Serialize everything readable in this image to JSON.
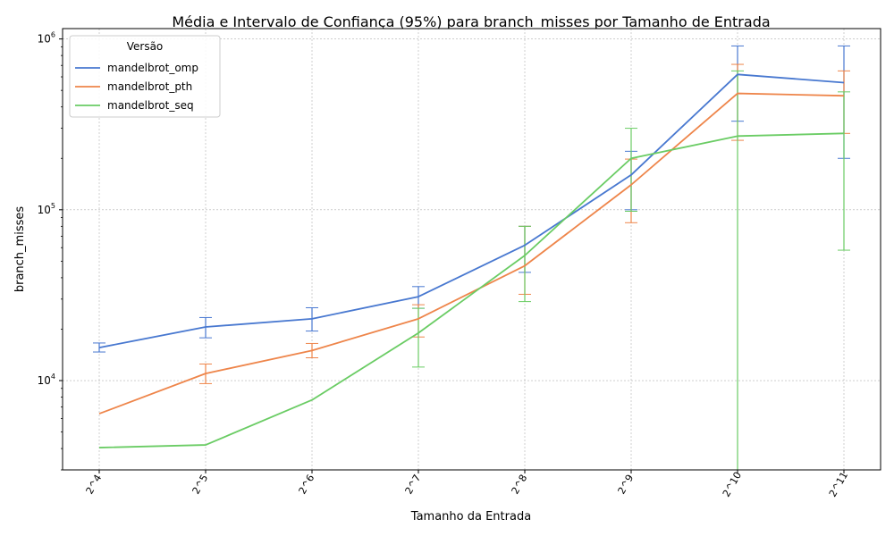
{
  "chart_data": {
    "type": "line",
    "title": "Média e Intervalo de Confiança (95%) para branch_misses por Tamanho de Entrada",
    "xlabel": "Tamanho da Entrada",
    "ylabel": "branch_misses",
    "x_ticks": [
      "2^4",
      "2^5",
      "2^6",
      "2^7",
      "2^8",
      "2^9",
      "2^10",
      "2^11"
    ],
    "y_scale": "log",
    "ylim": [
      3000,
      1150000
    ],
    "y_ticks": [
      {
        "value": 10000,
        "base": "10",
        "exp": "4"
      },
      {
        "value": 100000,
        "base": "10",
        "exp": "5"
      },
      {
        "value": 1000000,
        "base": "10",
        "exp": "6"
      }
    ],
    "grid": true,
    "legend": {
      "title": "Versão",
      "placement": "top-left"
    },
    "series": [
      {
        "name": "mandelbrot_omp",
        "color": "#4878d0",
        "values": [
          15600,
          20600,
          23000,
          31000,
          62000,
          160000,
          620000,
          555000
        ],
        "ci_low": [
          14700,
          17800,
          19500,
          26500,
          43000,
          100000,
          330000,
          200000
        ],
        "ci_high": [
          16600,
          23400,
          26700,
          35500,
          80000,
          220000,
          910000,
          910000
        ]
      },
      {
        "name": "mandelbrot_pth",
        "color": "#ee854a",
        "values": [
          6400,
          11000,
          15000,
          23000,
          47000,
          140000,
          480000,
          465000
        ],
        "ci_low": [
          6400,
          9600,
          13600,
          18000,
          32000,
          84000,
          255000,
          280000
        ],
        "ci_high": [
          6400,
          12500,
          16500,
          27800,
          80000,
          198000,
          710000,
          650000
        ]
      },
      {
        "name": "mandelbrot_seq",
        "color": "#6acc64",
        "values": [
          4050,
          4200,
          7700,
          19000,
          54000,
          200000,
          270000,
          280000
        ],
        "ci_low": [
          4050,
          4200,
          7700,
          12000,
          29000,
          98000,
          1000,
          58000
        ],
        "ci_high": [
          4050,
          4200,
          7700,
          26500,
          80000,
          300000,
          650000,
          490000
        ]
      }
    ]
  }
}
